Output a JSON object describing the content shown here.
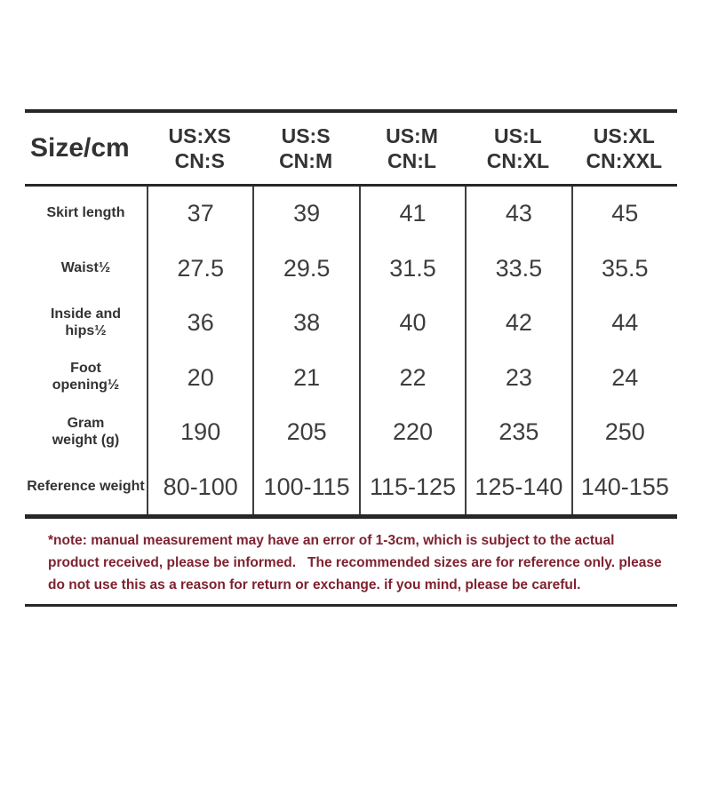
{
  "table": {
    "corner_label": "Size/cm",
    "columns": [
      {
        "us": "US:XS",
        "cn": "CN:S"
      },
      {
        "us": "US:S",
        "cn": "CN:M"
      },
      {
        "us": "US:M",
        "cn": "CN:L"
      },
      {
        "us": "US:L",
        "cn": "CN:XL"
      },
      {
        "us": "US:XL",
        "cn": "CN:XXL"
      }
    ],
    "rows": [
      {
        "label": "Skirt length",
        "values": [
          "37",
          "39",
          "41",
          "43",
          "45"
        ]
      },
      {
        "label": "Waist½",
        "values": [
          "27.5",
          "29.5",
          "31.5",
          "33.5",
          "35.5"
        ]
      },
      {
        "label": "Inside and\nhips½",
        "values": [
          "36",
          "38",
          "40",
          "42",
          "44"
        ]
      },
      {
        "label": "Foot\nopening½",
        "values": [
          "20",
          "21",
          "22",
          "23",
          "24"
        ]
      },
      {
        "label": "Gram\nweight (g)",
        "values": [
          "190",
          "205",
          "220",
          "235",
          "250"
        ]
      },
      {
        "label": "Reference weight",
        "values": [
          "80-100",
          "100-115",
          "115-125",
          "125-140",
          "140-155"
        ]
      }
    ]
  },
  "note": {
    "text": "*note: manual measurement may have an error of 1-3cm, which is subject to the actual\nproduct received, please be informed.   The recommended sizes are for reference only. please\ndo not use this as a reason for return or exchange. if you mind, please be careful."
  },
  "colors": {
    "table_text": "#333333",
    "rule": "#272727",
    "note_text": "#7f2230"
  }
}
